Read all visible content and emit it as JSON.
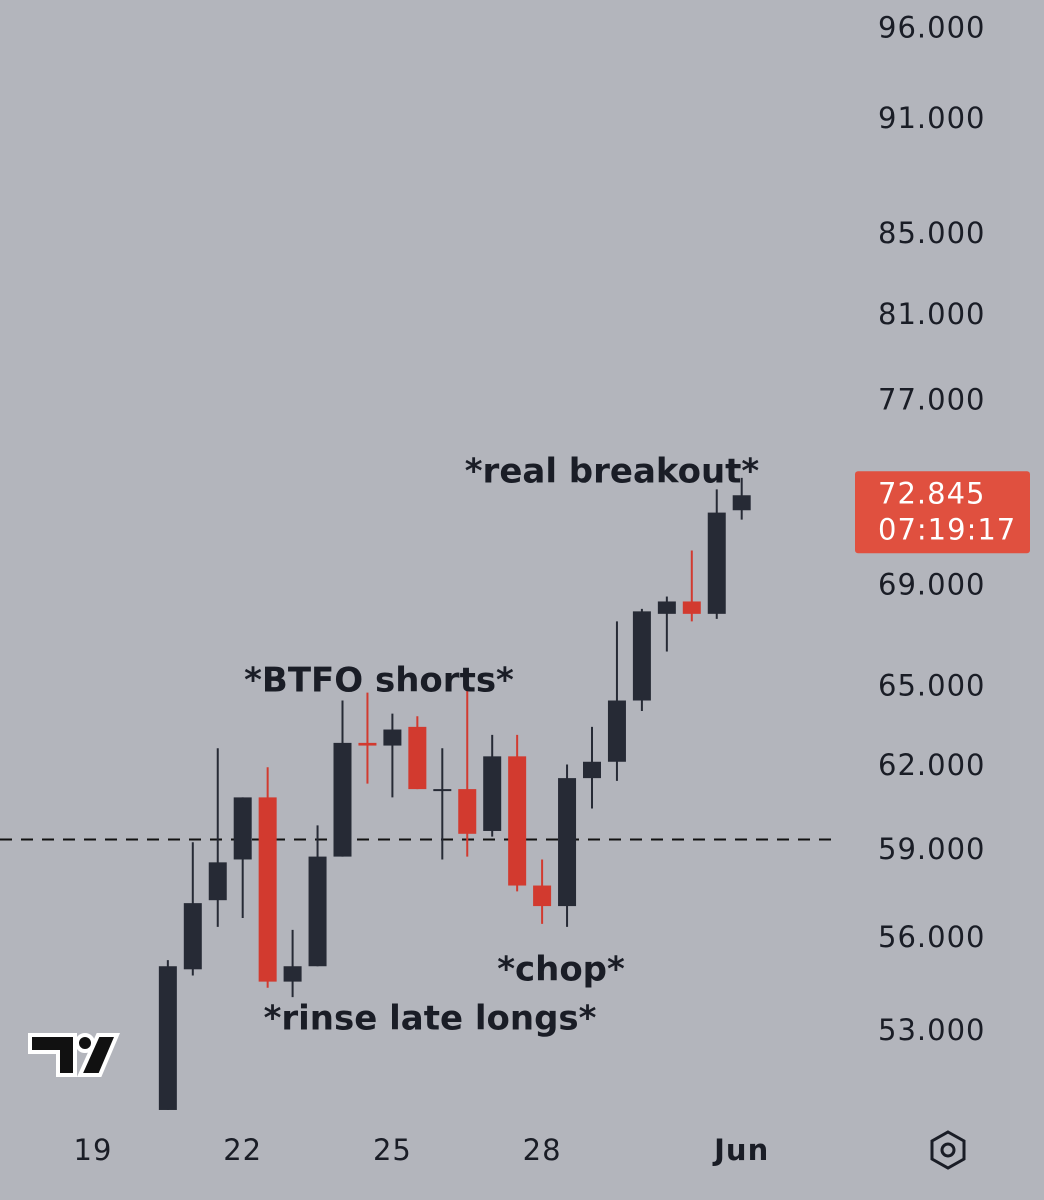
{
  "chart_data": {
    "type": "candlestick",
    "log_scale": true,
    "categories": [
      "19",
      null,
      null,
      null,
      null,
      null,
      "22",
      null,
      null,
      null,
      null,
      null,
      "25",
      null,
      null,
      null,
      null,
      null,
      "28",
      null,
      null,
      null,
      null,
      null,
      null,
      null,
      "Jun"
    ],
    "open": [
      null,
      null,
      null,
      50.6,
      55.0,
      57.3,
      58.7,
      60.9,
      54.6,
      55.1,
      58.8,
      62.9,
      62.8,
      63.5,
      61.2,
      61.2,
      59.7,
      62.4,
      57.8,
      57.1,
      61.6,
      62.2,
      64.5,
      67.9,
      68.4,
      67.9,
      72.2
    ],
    "high": [
      null,
      null,
      null,
      55.3,
      59.3,
      62.7,
      60.9,
      62.0,
      56.3,
      59.9,
      64.5,
      64.8,
      64.0,
      63.9,
      62.7,
      65.0,
      63.2,
      63.2,
      58.7,
      62.1,
      63.5,
      67.6,
      68.1,
      68.6,
      70.5,
      73.1,
      73.6
    ],
    "low": [
      null,
      null,
      null,
      50.6,
      54.8,
      56.4,
      56.7,
      54.4,
      54.1,
      55.1,
      58.8,
      61.4,
      60.9,
      61.2,
      58.7,
      58.8,
      59.5,
      57.6,
      56.5,
      56.4,
      60.5,
      61.5,
      64.1,
      66.4,
      67.6,
      67.7,
      71.8
    ],
    "close": [
      null,
      null,
      null,
      55.1,
      57.2,
      58.6,
      60.9,
      54.6,
      55.1,
      58.8,
      62.9,
      62.8,
      63.4,
      61.2,
      61.2,
      59.6,
      62.4,
      57.8,
      57.1,
      61.6,
      62.2,
      64.5,
      68.0,
      68.4,
      67.9,
      72.1,
      72.845
    ],
    "up_color": "#262a35",
    "down_color": "#d23a2f",
    "ylim": [
      50.3,
      97.7
    ],
    "yticks": [
      {
        "value": 96,
        "label": "96.000"
      },
      {
        "value": 91,
        "label": "91.000"
      },
      {
        "value": 85,
        "label": "85.000"
      },
      {
        "value": 81,
        "label": "81.000"
      },
      {
        "value": 77,
        "label": "77.000"
      },
      {
        "value": 69,
        "label": "69.000"
      },
      {
        "value": 65,
        "label": "65.000"
      },
      {
        "value": 62,
        "label": "62.000"
      },
      {
        "value": 59,
        "label": "59.000"
      },
      {
        "value": 56,
        "label": "56.000"
      },
      {
        "value": 53,
        "label": "53.000"
      }
    ],
    "hline": 59.4,
    "countdown": "07:19:17",
    "price_label_color": "#e0503f",
    "annotations": [
      "*real breakout*",
      "*BTFO shorts*",
      "*chop*",
      "*rinse late longs*"
    ]
  }
}
